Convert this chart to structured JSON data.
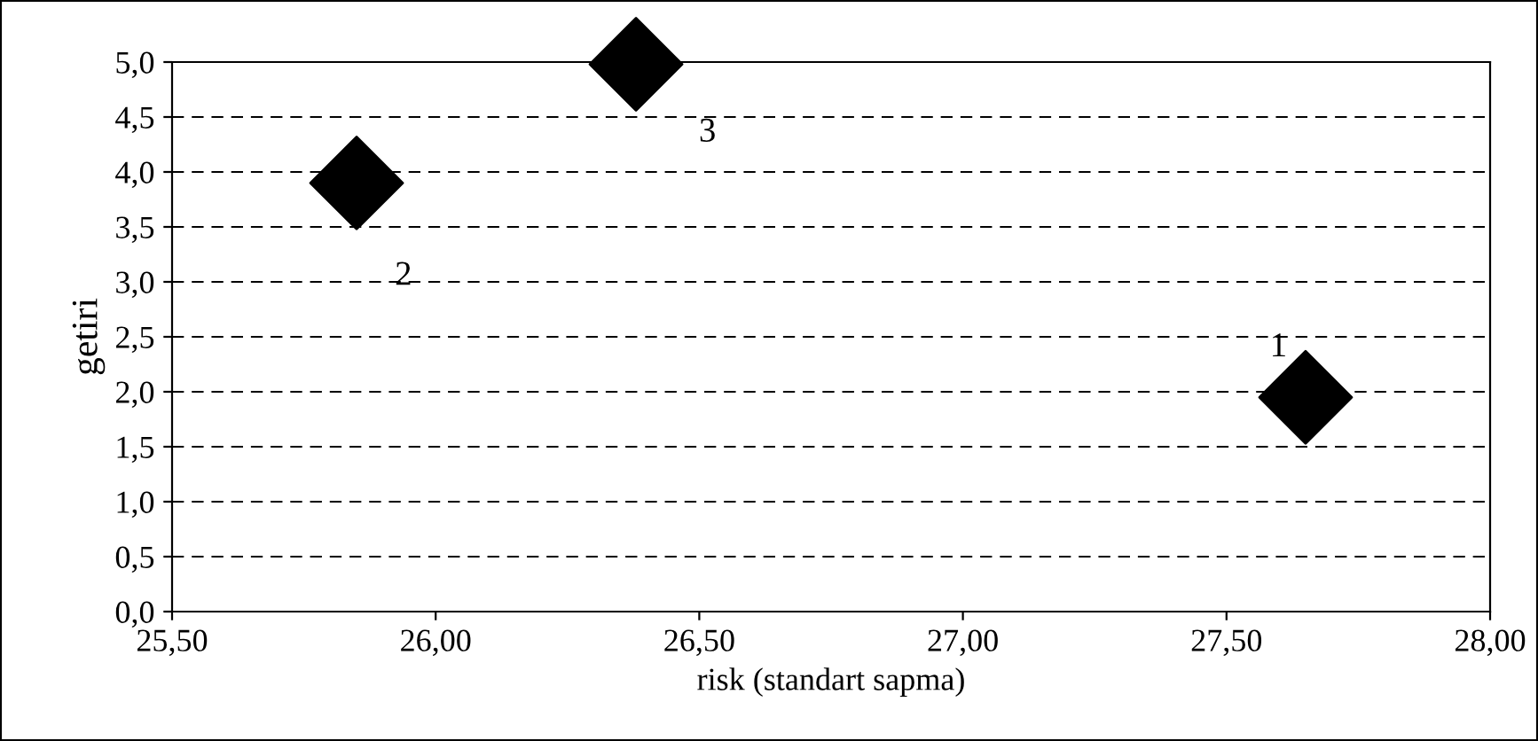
{
  "chart_data": {
    "type": "scatter",
    "xlabel": "risk (standart sapma)",
    "ylabel": "getiri",
    "x": [
      27.65,
      25.85,
      26.38
    ],
    "values": [
      1.95,
      3.9,
      4.98
    ],
    "color": "#000000",
    "marker": "diamond",
    "grid": "y",
    "xlim": [
      25.5,
      28.0
    ],
    "xticks": [
      {
        "value": 25.5,
        "label": "25,50"
      },
      {
        "value": 26.0,
        "label": "26,00"
      },
      {
        "value": 26.5,
        "label": "26,50"
      },
      {
        "value": 27.0,
        "label": "27,00"
      },
      {
        "value": 27.5,
        "label": "27,50"
      },
      {
        "value": 28.0,
        "label": "28,00"
      }
    ],
    "ylim": [
      0,
      5
    ],
    "yticks": [
      {
        "value": 0,
        "label": "0,0"
      },
      {
        "value": 0.5,
        "label": "0,5"
      },
      {
        "value": 1,
        "label": "1,0"
      },
      {
        "value": 1.5,
        "label": "1,5"
      },
      {
        "value": 2,
        "label": "2,0"
      },
      {
        "value": 2.5,
        "label": "2,5"
      },
      {
        "value": 3,
        "label": "3,0"
      },
      {
        "value": 3.5,
        "label": "3,5"
      },
      {
        "value": 4,
        "label": "4,0"
      },
      {
        "value": 4.5,
        "label": "4,5"
      },
      {
        "value": 5,
        "label": "5,0"
      }
    ],
    "annotations": [
      {
        "text": "1",
        "x": 27.65,
        "y": 1.95
      },
      {
        "text": "2",
        "x": 25.85,
        "y": 3.9
      },
      {
        "text": "3",
        "x": 26.38,
        "y": 4.98
      }
    ]
  }
}
